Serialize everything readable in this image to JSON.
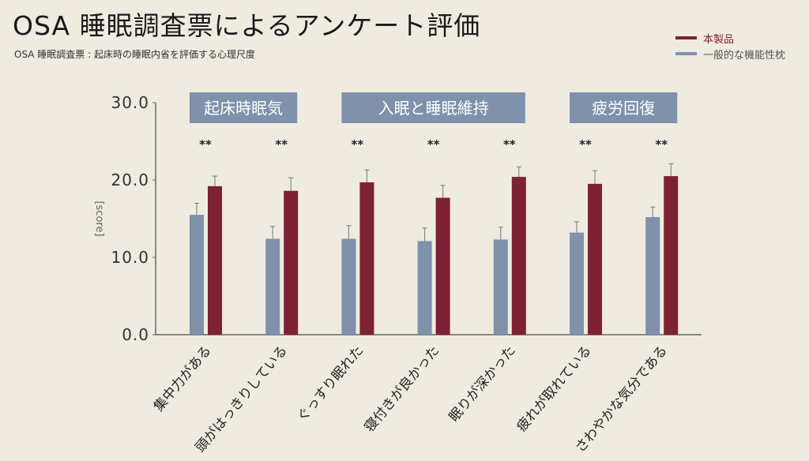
{
  "title": "OSA 睡眠調査票によるアンケート評価",
  "subtitle": "OSA 睡眠調査票 : 起床時の睡眠内省を評価する心理尺度",
  "colors": {
    "product": "#7e2132",
    "general": "#7f91ab",
    "background": "#efebe0"
  },
  "chart_data": {
    "type": "bar",
    "title": "OSA 睡眠調査票によるアンケート評価",
    "ylabel": "[score]",
    "xlabel": "",
    "ylim": [
      0,
      30
    ],
    "yticks": [
      "0.0",
      "10.0",
      "20.0",
      "30.0"
    ],
    "legend": {
      "placement": "top-right",
      "entries": [
        "本製品",
        "一般的な機能性枕"
      ]
    },
    "groups": [
      {
        "label": "起床時眠気",
        "from": 0,
        "to": 1
      },
      {
        "label": "入眠と睡眠維持",
        "from": 2,
        "to": 4
      },
      {
        "label": "疲労回復",
        "from": 5,
        "to": 6
      }
    ],
    "categories": [
      "集中力がある",
      "頭がはっきりしている",
      "ぐっすり眠れた",
      "寝付きが良かった",
      "眠りが深かった",
      "疲れが取れている",
      "さわやかな気分である"
    ],
    "significance": [
      "**",
      "**",
      "**",
      "**",
      "**",
      "**",
      "**"
    ],
    "series": [
      {
        "name": "一般的な機能性枕",
        "color": "#7f91ab",
        "values": [
          15.5,
          12.4,
          12.4,
          12.1,
          12.3,
          13.2,
          15.2
        ],
        "error": [
          1.5,
          1.6,
          1.7,
          1.7,
          1.6,
          1.4,
          1.3
        ]
      },
      {
        "name": "本製品",
        "color": "#7e2132",
        "values": [
          19.2,
          18.6,
          19.7,
          17.7,
          20.4,
          19.5,
          20.5
        ],
        "error": [
          1.3,
          1.7,
          1.6,
          1.6,
          1.3,
          1.7,
          1.6
        ]
      }
    ]
  }
}
